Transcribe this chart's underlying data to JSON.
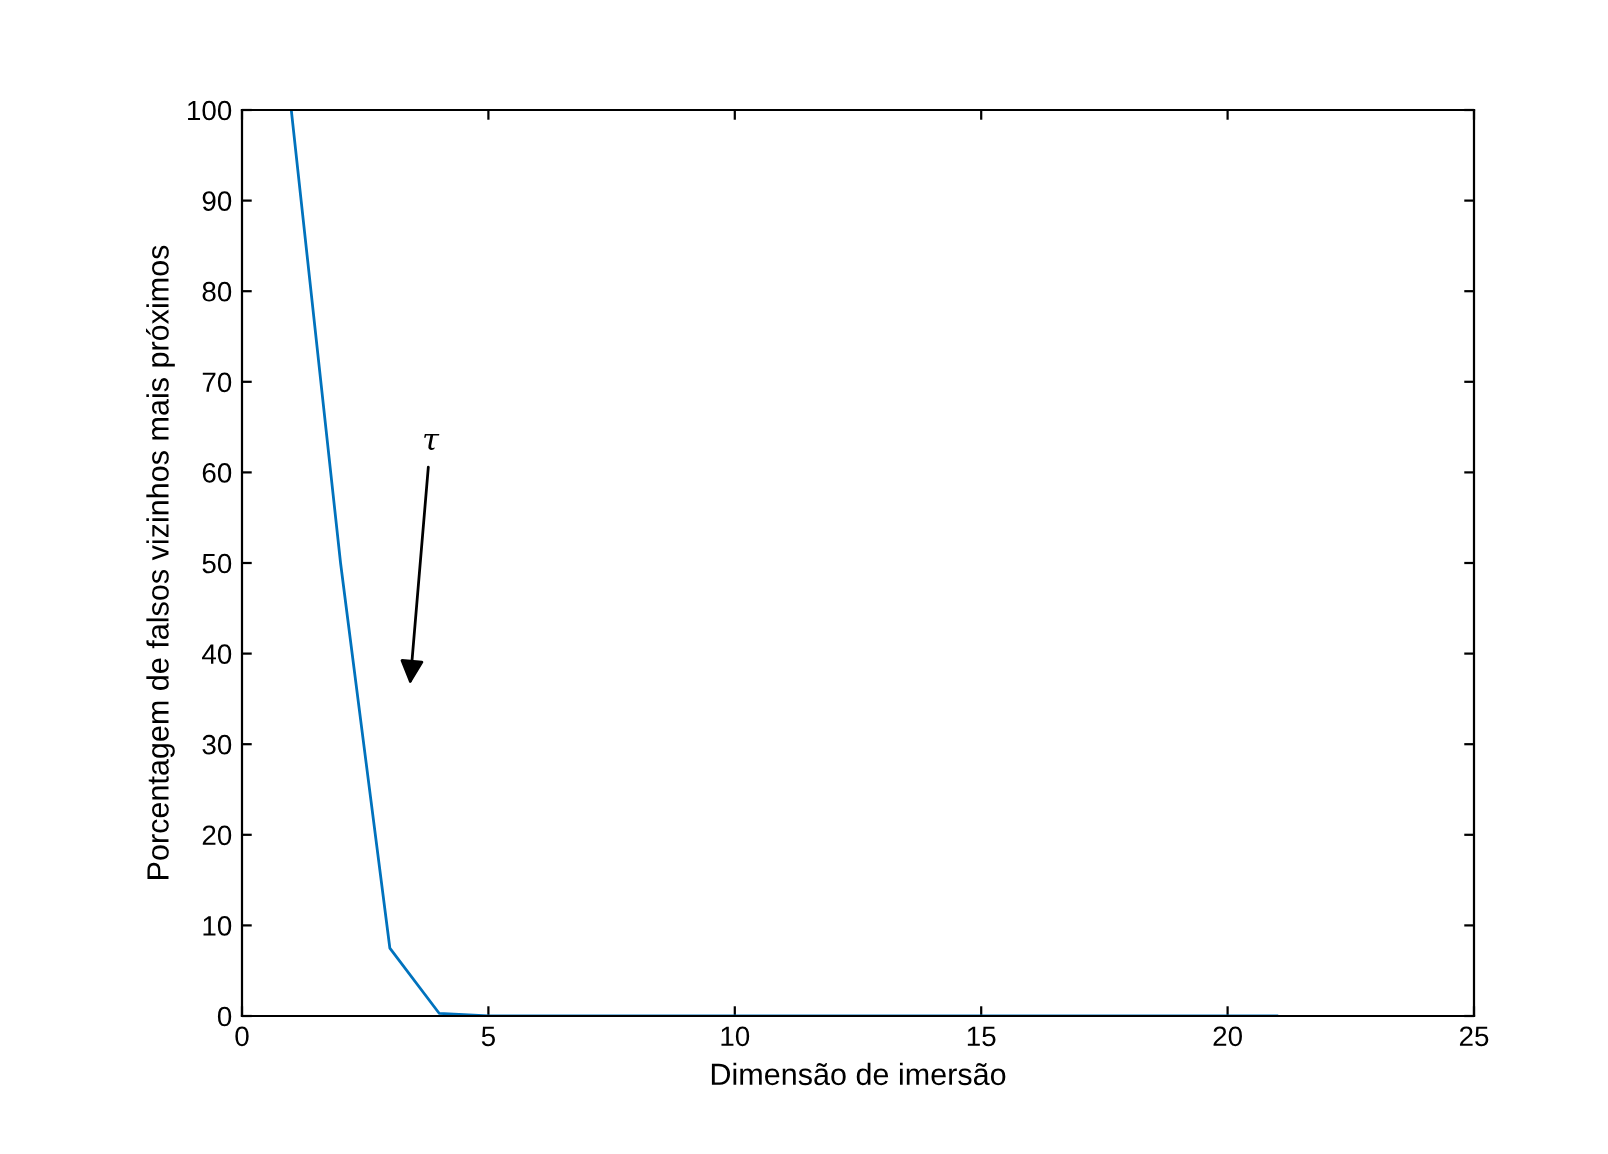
{
  "chart_data": {
    "type": "line",
    "xlabel": "Dimensão de imersão",
    "ylabel": "Porcentagem de falsos vizinhos mais próximos",
    "x": [
      1,
      2,
      3,
      4,
      5,
      6,
      7,
      8,
      9,
      10,
      11,
      12,
      13,
      14,
      15,
      16,
      17,
      18,
      19,
      20,
      21
    ],
    "series": [
      {
        "color": "#0072bd",
        "values": [
          100,
          50,
          7.5,
          0.3,
          0,
          0,
          0,
          0,
          0,
          0,
          0,
          0,
          0,
          0,
          0,
          0,
          0,
          0,
          0,
          0,
          0
        ]
      }
    ],
    "xlim": [
      0,
      25
    ],
    "ylim": [
      0,
      100
    ],
    "xticks": [
      0,
      5,
      10,
      15,
      20,
      25
    ],
    "yticks": [
      0,
      10,
      20,
      30,
      40,
      50,
      60,
      70,
      80,
      90,
      100
    ],
    "grid": false,
    "legend": false,
    "marker": "none",
    "line_style": "solid",
    "annotations": [
      "τ"
    ]
  }
}
